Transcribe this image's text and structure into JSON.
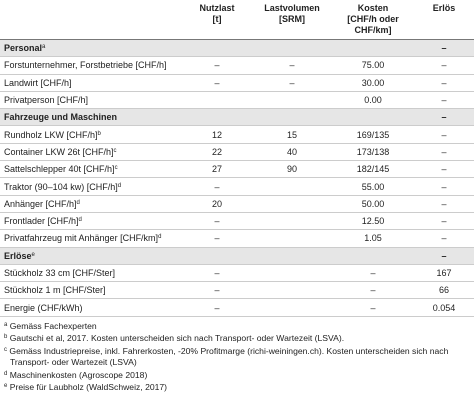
{
  "table": {
    "columns": [
      [
        "Nutzlast",
        "[t]"
      ],
      [
        "Lastvolumen",
        "[SRM]"
      ],
      [
        "Kosten",
        "[CHF/h oder",
        "CHF/km]"
      ],
      [
        "Erlös"
      ]
    ],
    "rows": [
      {
        "section": true,
        "label": "Personal",
        "note": "a",
        "cells": [
          null,
          null,
          null,
          "–"
        ]
      },
      {
        "label": "Forstunternehmer, Forstbetriebe [CHF/h]",
        "cells": [
          "–",
          "–",
          "75.00",
          "–"
        ]
      },
      {
        "label": "Landwirt [CHF/h]",
        "cells": [
          "–",
          "–",
          "30.00",
          "–"
        ]
      },
      {
        "label": "Privatperson [CHF/h]",
        "cells": [
          null,
          null,
          "0.00",
          "–"
        ]
      },
      {
        "section": true,
        "label": "Fahrzeuge und Maschinen",
        "cells": [
          null,
          null,
          null,
          "–"
        ]
      },
      {
        "label": "Rundholz LKW [CHF/h]",
        "note": "b",
        "cells": [
          "12",
          "15",
          "169/135",
          "–"
        ]
      },
      {
        "label": "Container LKW 26t [CHF/h]",
        "note": "c",
        "cells": [
          "22",
          "40",
          "173/138",
          "–"
        ]
      },
      {
        "label": "Sattelschlepper 40t [CHF/h]",
        "note": "c",
        "cells": [
          "27",
          "90",
          "182/145",
          "–"
        ]
      },
      {
        "label": "Traktor (90–104 kw) [CHF/h]",
        "note": "d",
        "cells": [
          "–",
          null,
          "55.00",
          "–"
        ]
      },
      {
        "label": "Anhänger [CHF/h]",
        "note": "d",
        "cells": [
          "20",
          null,
          "50.00",
          "–"
        ]
      },
      {
        "label": "Frontlader [CHF/h]",
        "note": "d",
        "cells": [
          "–",
          null,
          "12.50",
          "–"
        ]
      },
      {
        "label": "Privatfahrzeug mit Anhänger [CHF/km]",
        "note": "d",
        "cells": [
          "–",
          null,
          "1.05",
          "–"
        ]
      },
      {
        "section": true,
        "label": "Erlöse",
        "note": "e",
        "cells": [
          null,
          null,
          null,
          "–"
        ]
      },
      {
        "label": "Stückholz 33 cm [CHF/Ster]",
        "cells": [
          "–",
          null,
          "–",
          "167"
        ]
      },
      {
        "label": "Stückholz 1 m [CHF/Ster]",
        "cells": [
          "–",
          null,
          "–",
          "66"
        ]
      },
      {
        "label": "Energie (CHF/kWh)",
        "cells": [
          "–",
          null,
          "–",
          "0.054"
        ]
      }
    ]
  },
  "footnotes": [
    {
      "mark": "a",
      "text": "Gemäss Fachexperten"
    },
    {
      "mark": "b",
      "text": "Gautschi et al, 2017. Kosten unterscheiden sich nach Transport- oder Wartezeit (LSVA)."
    },
    {
      "mark": "c",
      "text": "Gemäss Industriepreise, inkl. Fahrerkosten, -20% Profitmarge (richi-weiningen.ch). Kosten unterscheiden sich nach Transport- oder Wartezeit (LSVA)"
    },
    {
      "mark": "d",
      "text": "Maschinenkosten (Agroscope 2018)"
    },
    {
      "mark": "e",
      "text": "Preise für Laubholz (WaldSchweiz, 2017)"
    }
  ]
}
